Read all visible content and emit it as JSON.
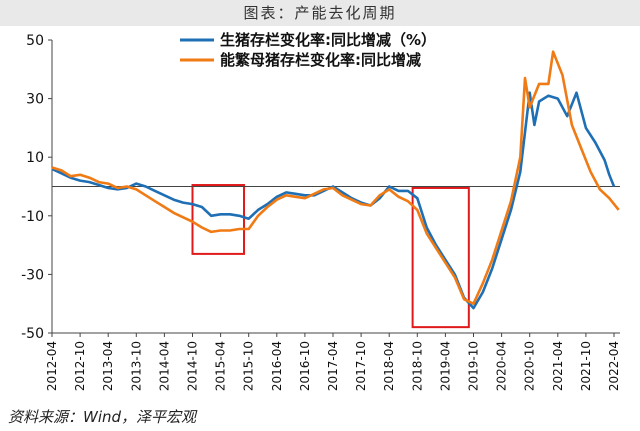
{
  "header": {
    "title": "图表：产能去化周期"
  },
  "source": "资料来源：Wind，泽平宏观",
  "chart_data": {
    "type": "line",
    "ylim": [
      -50,
      50
    ],
    "yticks": [
      50,
      30,
      10,
      -10,
      -30,
      -50
    ],
    "xticks": [
      "2012-04",
      "2012-10",
      "2013-04",
      "2013-10",
      "2014-04",
      "2014-10",
      "2015-04",
      "2015-10",
      "2016-04",
      "2016-10",
      "2017-04",
      "2017-10",
      "2018-04",
      "2018-10",
      "2019-04",
      "2019-10",
      "2020-04",
      "2020-10",
      "2021-04",
      "2021-10",
      "2022-04"
    ],
    "x_start": "2012-04",
    "x_end": "2022-04",
    "legend": "top",
    "colors": {
      "series1": "#1f6fb5",
      "series2": "#f07a14",
      "highlight": "#e0191b",
      "axis": "#444444"
    },
    "series": [
      {
        "name": "生猪存栏变化率:同比增减（%）",
        "points": [
          [
            "2012-04",
            6
          ],
          [
            "2012-06",
            4.5
          ],
          [
            "2012-08",
            3
          ],
          [
            "2012-10",
            2
          ],
          [
            "2012-12",
            1.5
          ],
          [
            "2013-02",
            0.5
          ],
          [
            "2013-04",
            -0.5
          ],
          [
            "2013-06",
            -1
          ],
          [
            "2013-08",
            -0.5
          ],
          [
            "2013-10",
            1
          ],
          [
            "2013-12",
            0
          ],
          [
            "2014-02",
            -1.5
          ],
          [
            "2014-04",
            -3
          ],
          [
            "2014-06",
            -4.5
          ],
          [
            "2014-08",
            -5.5
          ],
          [
            "2014-10",
            -6
          ],
          [
            "2014-12",
            -7
          ],
          [
            "2015-02",
            -10
          ],
          [
            "2015-04",
            -9.5
          ],
          [
            "2015-06",
            -9.5
          ],
          [
            "2015-08",
            -10
          ],
          [
            "2015-10",
            -11
          ],
          [
            "2015-12",
            -8
          ],
          [
            "2016-02",
            -6
          ],
          [
            "2016-04",
            -3.5
          ],
          [
            "2016-06",
            -2
          ],
          [
            "2016-08",
            -2.5
          ],
          [
            "2016-10",
            -3
          ],
          [
            "2016-12",
            -3
          ],
          [
            "2017-02",
            -1.5
          ],
          [
            "2017-04",
            0
          ],
          [
            "2017-06",
            -2
          ],
          [
            "2017-08",
            -4
          ],
          [
            "2017-10",
            -5.5
          ],
          [
            "2017-12",
            -6.5
          ],
          [
            "2018-02",
            -4
          ],
          [
            "2018-04",
            0
          ],
          [
            "2018-06",
            -1.5
          ],
          [
            "2018-08",
            -1.5
          ],
          [
            "2018-10",
            -4
          ],
          [
            "2018-12",
            -14
          ],
          [
            "2019-02",
            -20
          ],
          [
            "2019-04",
            -25
          ],
          [
            "2019-06",
            -30
          ],
          [
            "2019-08",
            -38
          ],
          [
            "2019-10",
            -41.5
          ],
          [
            "2019-12",
            -36
          ],
          [
            "2020-02",
            -28
          ],
          [
            "2020-04",
            -18
          ],
          [
            "2020-06",
            -8
          ],
          [
            "2020-08",
            5
          ],
          [
            "2020-10",
            32
          ],
          [
            "2020-11",
            21
          ],
          [
            "2020-12",
            29
          ],
          [
            "2021-02",
            31
          ],
          [
            "2021-04",
            30
          ],
          [
            "2021-06",
            24
          ],
          [
            "2021-08",
            32
          ],
          [
            "2021-10",
            20
          ],
          [
            "2021-12",
            15
          ],
          [
            "2022-02",
            9
          ],
          [
            "2022-03",
            4
          ],
          [
            "2022-04",
            0
          ]
        ]
      },
      {
        "name": "能繁母猪存栏变化率:同比增减",
        "points": [
          [
            "2012-04",
            6.5
          ],
          [
            "2012-06",
            5.5
          ],
          [
            "2012-08",
            3.5
          ],
          [
            "2012-10",
            4
          ],
          [
            "2012-12",
            3
          ],
          [
            "2013-02",
            1.5
          ],
          [
            "2013-04",
            1
          ],
          [
            "2013-06",
            -0.5
          ],
          [
            "2013-08",
            0
          ],
          [
            "2013-10",
            -1
          ],
          [
            "2013-12",
            -3
          ],
          [
            "2014-02",
            -5
          ],
          [
            "2014-04",
            -7
          ],
          [
            "2014-06",
            -9
          ],
          [
            "2014-08",
            -10.5
          ],
          [
            "2014-10",
            -12
          ],
          [
            "2014-12",
            -14
          ],
          [
            "2015-02",
            -15.5
          ],
          [
            "2015-04",
            -15
          ],
          [
            "2015-06",
            -15
          ],
          [
            "2015-08",
            -14.5
          ],
          [
            "2015-10",
            -14.5
          ],
          [
            "2015-12",
            -10
          ],
          [
            "2016-02",
            -7
          ],
          [
            "2016-04",
            -4.5
          ],
          [
            "2016-06",
            -3
          ],
          [
            "2016-08",
            -3.5
          ],
          [
            "2016-10",
            -4
          ],
          [
            "2016-12",
            -2.5
          ],
          [
            "2017-02",
            -1
          ],
          [
            "2017-04",
            -0.5
          ],
          [
            "2017-06",
            -3
          ],
          [
            "2017-08",
            -4.5
          ],
          [
            "2017-10",
            -6
          ],
          [
            "2017-12",
            -6.5
          ],
          [
            "2018-02",
            -3
          ],
          [
            "2018-04",
            -1
          ],
          [
            "2018-06",
            -3.5
          ],
          [
            "2018-08",
            -5
          ],
          [
            "2018-10",
            -8
          ],
          [
            "2018-12",
            -16
          ],
          [
            "2019-02",
            -21
          ],
          [
            "2019-04",
            -26
          ],
          [
            "2019-06",
            -31
          ],
          [
            "2019-08",
            -38.5
          ],
          [
            "2019-10",
            -40
          ],
          [
            "2019-12",
            -33
          ],
          [
            "2020-02",
            -25
          ],
          [
            "2020-04",
            -15
          ],
          [
            "2020-06",
            -5
          ],
          [
            "2020-08",
            10
          ],
          [
            "2020-09",
            37
          ],
          [
            "2020-10",
            27
          ],
          [
            "2020-12",
            35
          ],
          [
            "2021-02",
            35
          ],
          [
            "2021-03",
            46
          ],
          [
            "2021-05",
            38
          ],
          [
            "2021-07",
            21
          ],
          [
            "2021-09",
            13
          ],
          [
            "2021-11",
            5
          ],
          [
            "2022-01",
            -1
          ],
          [
            "2022-03",
            -4
          ],
          [
            "2022-05",
            -8
          ]
        ]
      }
    ],
    "highlight_boxes": [
      {
        "x0": "2014-10",
        "x1": "2015-09",
        "y0": -23,
        "y1": 0.5
      },
      {
        "x0": "2018-09",
        "x1": "2019-09",
        "y0": -48,
        "y1": -0.5
      }
    ]
  }
}
